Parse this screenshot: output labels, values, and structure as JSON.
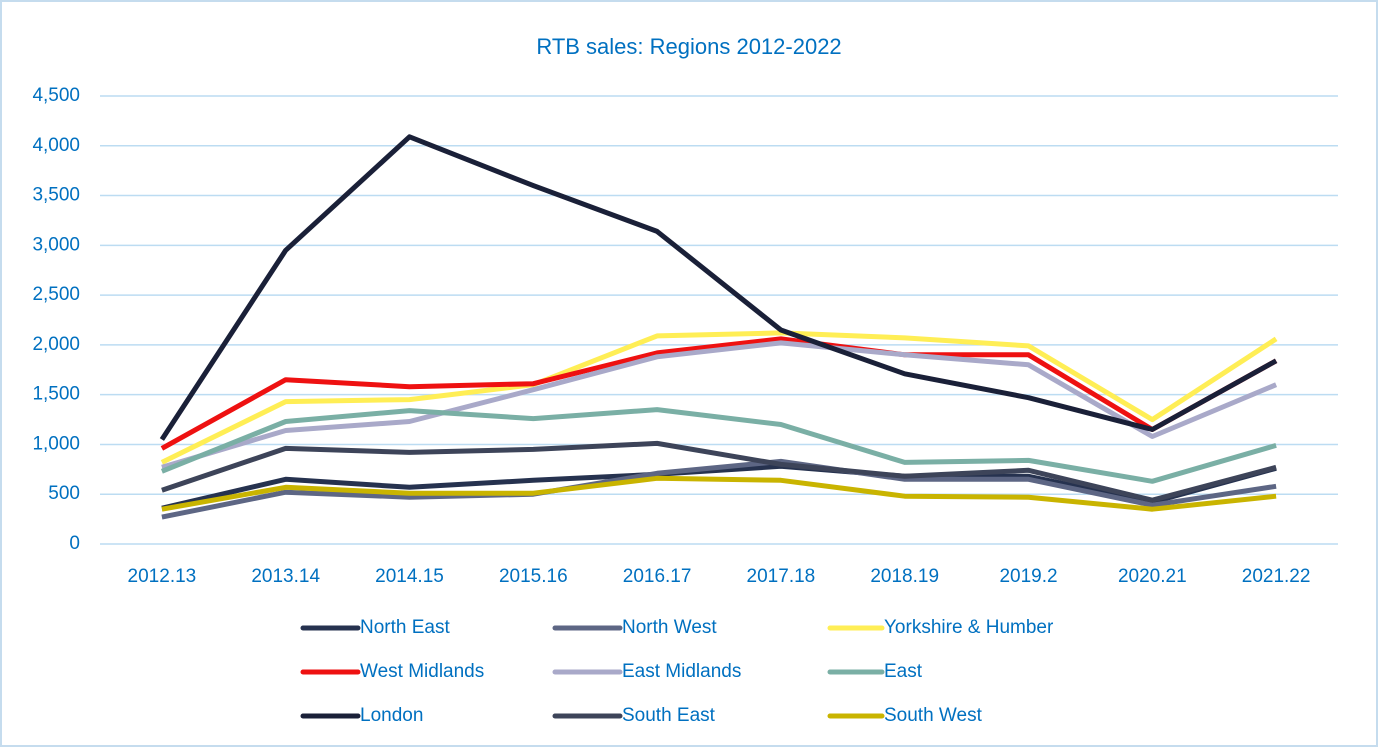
{
  "chart_data": {
    "type": "line",
    "title": "RTB sales: Regions 2012-2022",
    "categories": [
      "2012.13",
      "2013.14",
      "2014.15",
      "2015.16",
      "2016.17",
      "2017.18",
      "2018.19",
      "2019.2",
      "2020.21",
      "2021.22"
    ],
    "ylim": [
      0,
      4500
    ],
    "yticks": [
      0,
      500,
      {
        "value": 1000,
        "label": "1,000"
      },
      {
        "value": 1500,
        "label": "1,500"
      },
      {
        "value": 2000,
        "label": "2,000"
      },
      {
        "value": 2500,
        "label": "2,500"
      },
      {
        "value": 3000,
        "label": "3,000"
      },
      {
        "value": 3500,
        "label": "3,500"
      },
      {
        "value": 4000,
        "label": "4,000"
      },
      {
        "value": 4500,
        "label": "4,500"
      }
    ],
    "grid": true,
    "series": [
      {
        "name": "North East",
        "color": "#26324f",
        "values": [
          360,
          650,
          570,
          640,
          700,
          780,
          680,
          680,
          420,
          760
        ]
      },
      {
        "name": "North West",
        "color": "#5d6684",
        "values": [
          270,
          520,
          470,
          500,
          710,
          830,
          650,
          650,
          390,
          580
        ]
      },
      {
        "name": "Yorkshire & Humber",
        "color": "#ffee55",
        "values": [
          820,
          1430,
          1450,
          1600,
          2090,
          2120,
          2070,
          1990,
          1250,
          2060
        ]
      },
      {
        "name": "West Midlands",
        "color": "#ee1111",
        "values": [
          960,
          1650,
          1580,
          1610,
          1920,
          2060,
          1900,
          1900,
          1150,
          1840
        ]
      },
      {
        "name": "East Midlands",
        "color": "#a9a9c9",
        "values": [
          770,
          1140,
          1230,
          1550,
          1880,
          2020,
          1900,
          1800,
          1080,
          1600
        ]
      },
      {
        "name": "East",
        "color": "#7aafa5",
        "values": [
          730,
          1230,
          1340,
          1260,
          1350,
          1200,
          820,
          840,
          630,
          990
        ]
      },
      {
        "name": "London",
        "color": "#1a2038",
        "values": [
          1050,
          2950,
          4090,
          3600,
          3140,
          2150,
          1710,
          1470,
          1150,
          1840
        ]
      },
      {
        "name": "South East",
        "color": "#3d4459",
        "values": [
          540,
          960,
          920,
          950,
          1010,
          800,
          680,
          740,
          440,
          770
        ]
      },
      {
        "name": "South West",
        "color": "#c9b400",
        "values": [
          350,
          570,
          510,
          510,
          660,
          640,
          480,
          470,
          350,
          480
        ]
      }
    ]
  }
}
